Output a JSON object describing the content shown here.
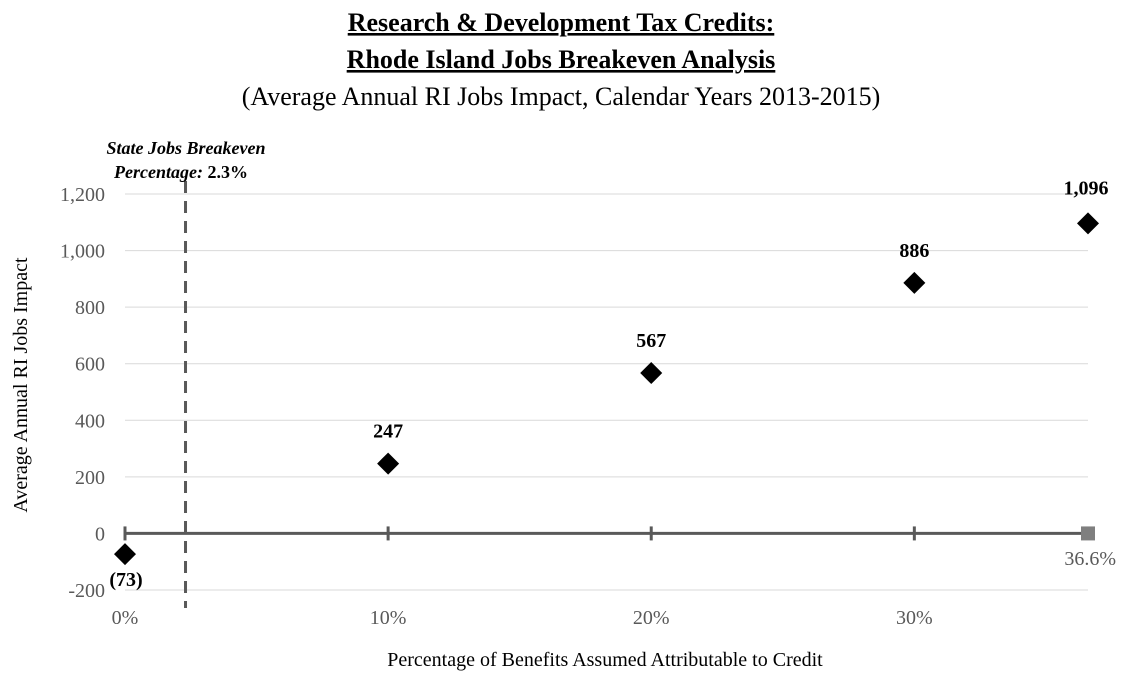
{
  "chart_data": {
    "type": "scatter",
    "title_line1": "Research & Development Tax Credits:",
    "title_line2": "Rhode Island Jobs Breakeven Analysis",
    "subtitle": "(Average Annual RI Jobs Impact, Calendar Years 2013-2015)",
    "xlabel": "Percentage of Benefits Assumed Attributable to Credit",
    "ylabel": "Average Annual RI Jobs Impact",
    "xlim": [
      0,
      36.6
    ],
    "ylim": [
      -200,
      1200
    ],
    "x_ticks": [
      0,
      10,
      20,
      30
    ],
    "x_tick_labels": [
      "0%",
      "10%",
      "20%",
      "30%"
    ],
    "y_ticks": [
      -200,
      0,
      200,
      400,
      600,
      800,
      1000,
      1200
    ],
    "y_tick_labels": [
      "-200",
      "0",
      "200",
      "400",
      "600",
      "800",
      "1,000",
      "1,200"
    ],
    "grid": true,
    "points": [
      {
        "x": 0,
        "y": -73,
        "label": "(73)"
      },
      {
        "x": 10,
        "y": 247,
        "label": "247"
      },
      {
        "x": 20,
        "y": 567,
        "label": "567"
      },
      {
        "x": 30,
        "y": 886,
        "label": "886"
      },
      {
        "x": 36.6,
        "y": 1096,
        "label": "1,096"
      }
    ],
    "breakeven": {
      "x": 2.3,
      "label_line1": "State Jobs Breakeven",
      "label_prefix": "Percentage:",
      "label_value": "2.3%"
    },
    "axis_end_label": "36.6%",
    "colors": {
      "points": "#000000",
      "axis": "#595959",
      "grid": "#d9d9d9",
      "breakeven_line": "#595959",
      "end_marker": "#7f7f7f",
      "text": "#000000",
      "tick_text": "#595959"
    }
  }
}
